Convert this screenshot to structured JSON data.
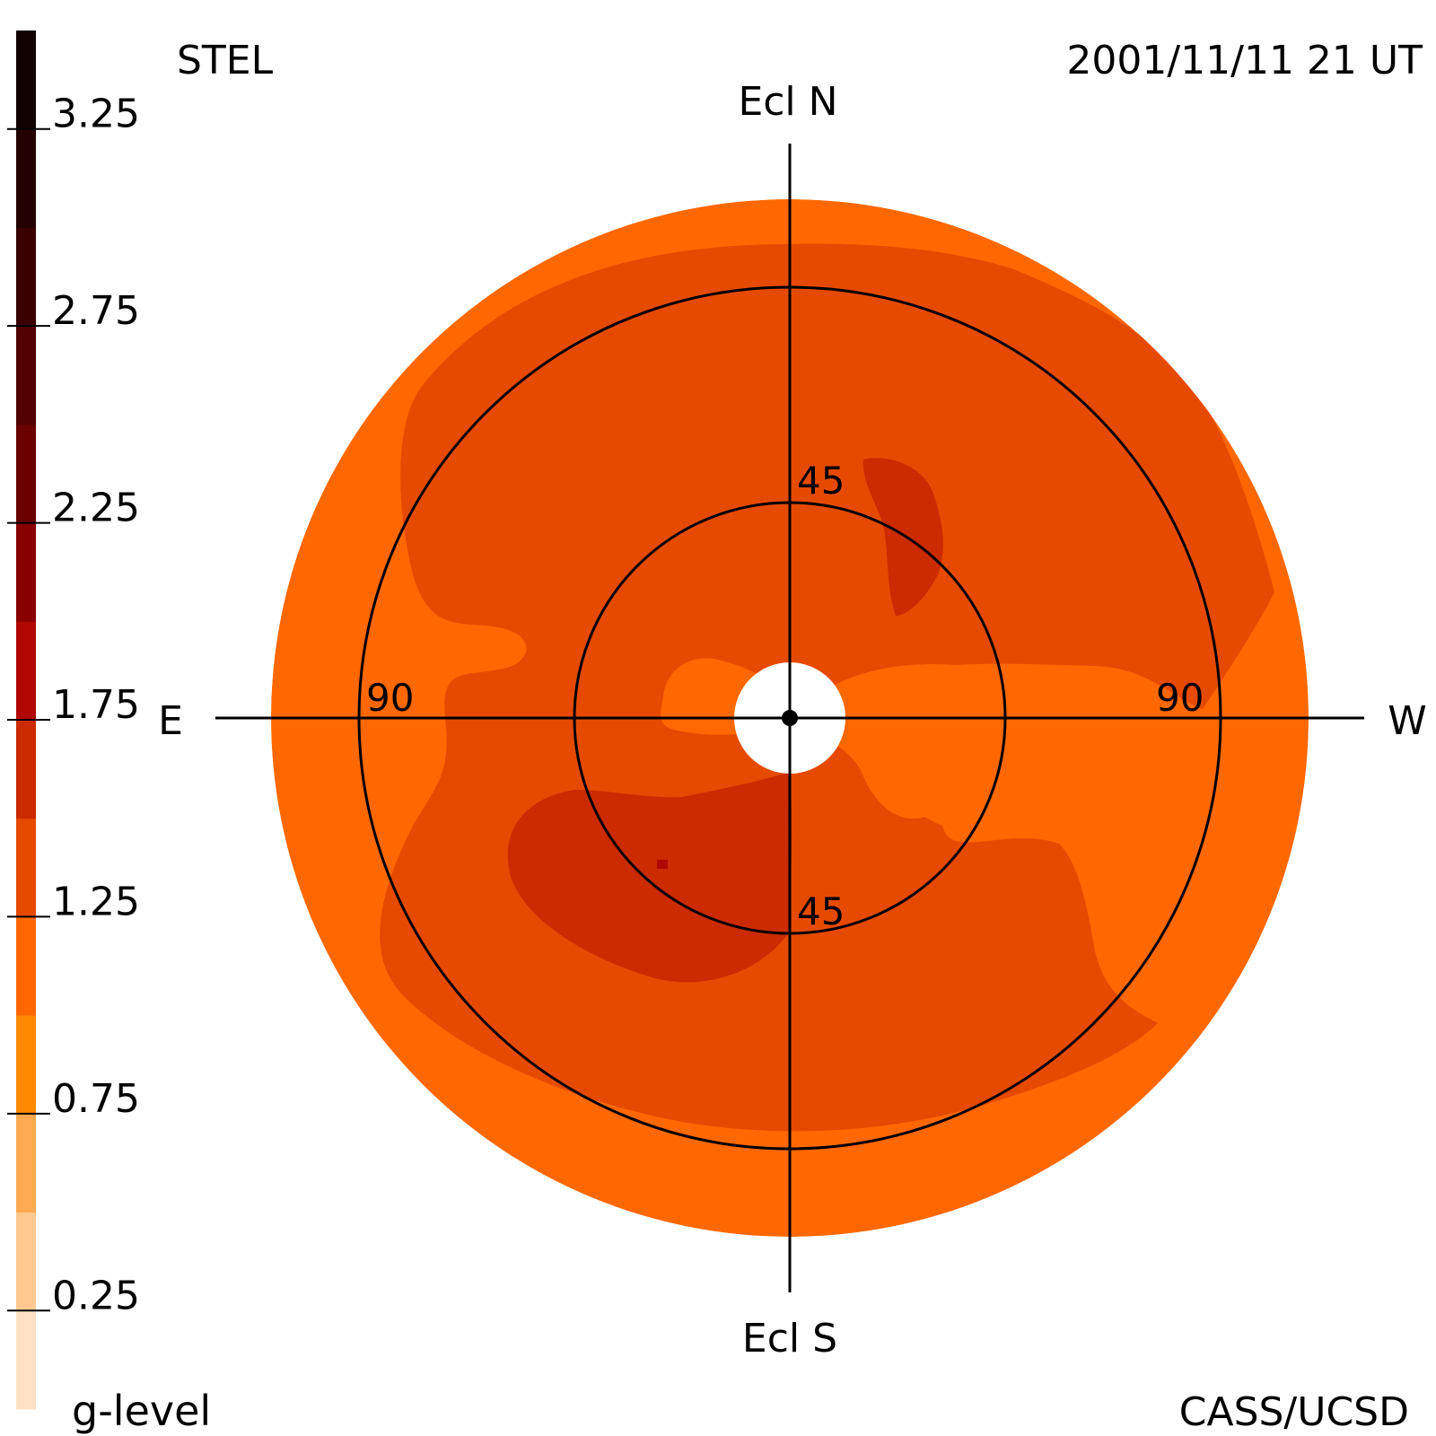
{
  "header": {
    "observatory": "STEL",
    "timestamp": "2001/11/11 21 UT",
    "credit": "CASS/UCSD"
  },
  "chart_data": {
    "type": "heatmap",
    "projection": "fisheye sky map, center = Sun, radius = elongation (degrees)",
    "colorbar": {
      "label": "g-level",
      "ticks": [
        0.25,
        0.75,
        1.25,
        1.75,
        2.25,
        2.75,
        3.25
      ],
      "tick_labels": [
        "0.25",
        "0.75",
        "1.25",
        "1.75",
        "2.25",
        "2.75",
        "3.25"
      ],
      "bands": [
        {
          "from": 0.0,
          "to": 0.25,
          "color": "#ffe0c4"
        },
        {
          "from": 0.25,
          "to": 0.5,
          "color": "#ffc890"
        },
        {
          "from": 0.5,
          "to": 0.75,
          "color": "#ffaa50"
        },
        {
          "from": 0.75,
          "to": 1.0,
          "color": "#ff8a00"
        },
        {
          "from": 1.0,
          "to": 1.25,
          "color": "#ff6800"
        },
        {
          "from": 1.25,
          "to": 1.5,
          "color": "#e64a00"
        },
        {
          "from": 1.5,
          "to": 1.75,
          "color": "#cc2a00"
        },
        {
          "from": 1.75,
          "to": 2.0,
          "color": "#b00800"
        },
        {
          "from": 2.0,
          "to": 2.25,
          "color": "#880000"
        },
        {
          "from": 2.25,
          "to": 2.5,
          "color": "#6a0000"
        },
        {
          "from": 2.5,
          "to": 2.75,
          "color": "#520000"
        },
        {
          "from": 2.75,
          "to": 3.0,
          "color": "#3a0000"
        },
        {
          "from": 3.0,
          "to": 3.25,
          "color": "#240000"
        },
        {
          "from": 3.25,
          "to": 3.5,
          "color": "#100000"
        }
      ]
    },
    "direction_labels": {
      "north": "Ecl N",
      "south": "Ecl S",
      "east": "E",
      "west": "W"
    },
    "elongation_rings": [
      45,
      90
    ],
    "ring_labels": {
      "north_45": "45",
      "south_45": "45",
      "east_90": "90",
      "west_90": "90"
    },
    "max_elongation_deg": 120,
    "occulter_radius_deg": 12,
    "regions": [
      {
        "name": "outer band",
        "g_level": 1.1
      },
      {
        "name": "interior",
        "g_level": 1.35
      },
      {
        "name": "sunward lobes",
        "g_level": 1.1
      },
      {
        "name": "southeast enhancement",
        "g_level": 1.6
      },
      {
        "name": "northwest enhancement",
        "g_level": 1.6
      },
      {
        "name": "peak spot",
        "g_level": 1.85
      }
    ]
  },
  "colors": {
    "level_1_1": "#ff6800",
    "level_1_35": "#e64a00",
    "level_1_6": "#cc2a00",
    "level_1_85": "#b00800",
    "background": "#ffffff",
    "lines": "#000000"
  }
}
